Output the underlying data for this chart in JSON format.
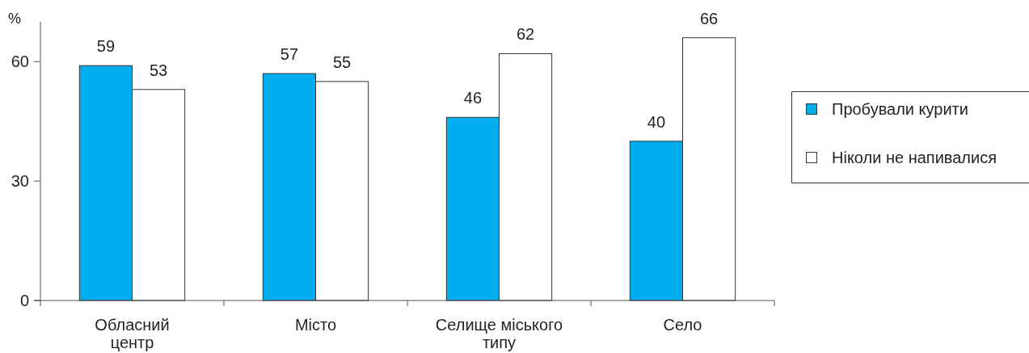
{
  "chart_data": {
    "type": "bar",
    "ylabel": "%",
    "categories": [
      "Обласний центр",
      "Місто",
      "Селище міського типу",
      "Село"
    ],
    "series": [
      {
        "name": "Пробували курити",
        "color": "#00aeef",
        "values": [
          59,
          57,
          46,
          40
        ]
      },
      {
        "name": "Ніколи не напивалися",
        "color": "#ffffff",
        "values": [
          53,
          55,
          62,
          66
        ]
      }
    ],
    "ylim": [
      0,
      70
    ],
    "yticks": [
      0,
      30,
      60
    ],
    "data_labels": true,
    "legend": "right"
  }
}
